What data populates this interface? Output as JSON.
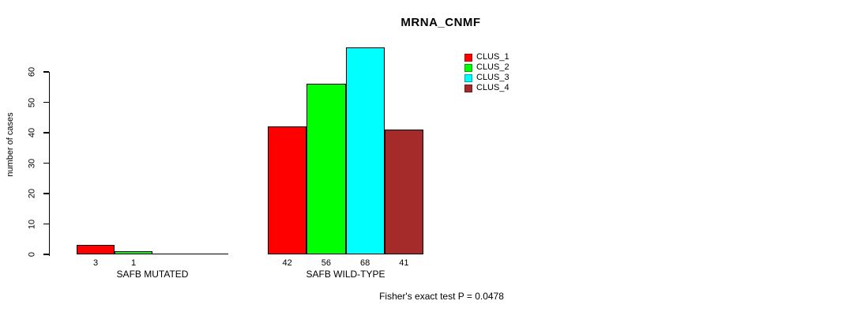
{
  "chart_data": {
    "type": "bar",
    "title": "MRNA_CNMF",
    "ylabel": "number of cases",
    "xlabel": "",
    "categories": [
      "SAFB MUTATED",
      "SAFB WILD-TYPE"
    ],
    "series": [
      {
        "name": "CLUS_1",
        "color": "#ff0000",
        "values": [
          3,
          42
        ]
      },
      {
        "name": "CLUS_2",
        "color": "#00ff00",
        "values": [
          1,
          56
        ]
      },
      {
        "name": "CLUS_3",
        "color": "#00ffff",
        "values": [
          0,
          68
        ]
      },
      {
        "name": "CLUS_4",
        "color": "#a52a2a",
        "values": [
          0,
          41
        ]
      }
    ],
    "bar_value_labels": [
      [
        "3",
        "1",
        "",
        ""
      ],
      [
        "42",
        "56",
        "68",
        "41"
      ]
    ],
    "yticks": [
      0,
      10,
      20,
      30,
      40,
      50,
      60
    ],
    "ylim": [
      0,
      68
    ],
    "grid": false,
    "legend_position": "top-right",
    "legend": [
      "CLUS_1",
      "CLUS_2",
      "CLUS_3",
      "CLUS_4"
    ],
    "annotation": "Fisher's exact test P = 0.0478",
    "colors": {
      "axis": "#000000",
      "background": "#ffffff"
    }
  }
}
